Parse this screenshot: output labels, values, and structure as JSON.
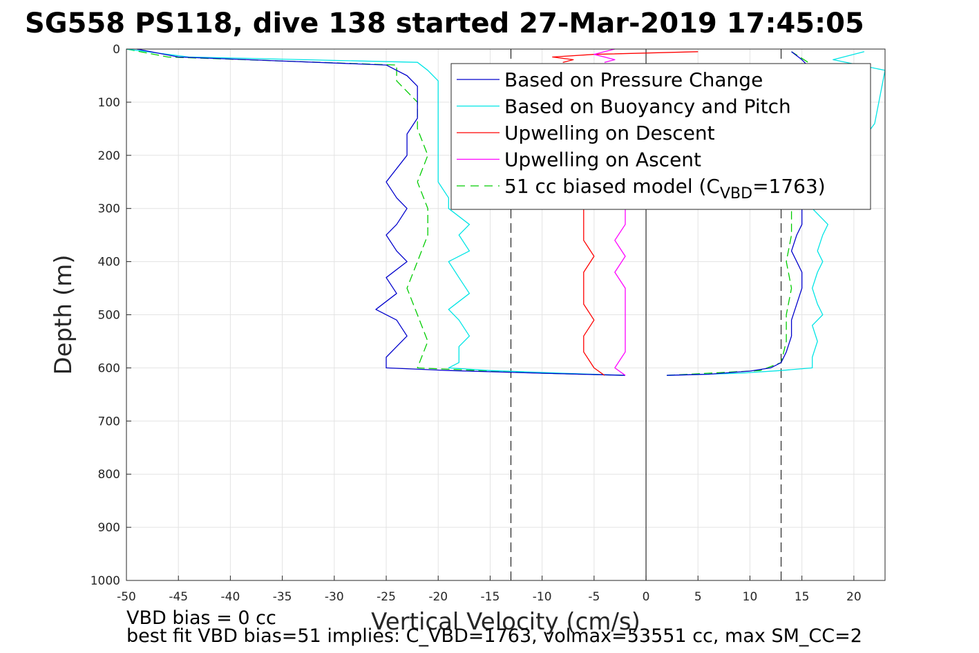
{
  "title": "SG558 PS118, dive 138 started 27-Mar-2019 17:45:05",
  "notes": {
    "line1": "VBD bias = 0 cc",
    "line2": "best fit VBD bias=51 implies: C_VBD=1763, volmax=53551 cc, max SM_CC=2"
  },
  "chart_data": {
    "type": "line",
    "xlabel": "Vertical Velocity (cm/s)",
    "ylabel": "Depth (m)",
    "xlim": [
      -50,
      23
    ],
    "ylim": [
      0,
      1000
    ],
    "y_reversed": true,
    "grid": true,
    "xticks": [
      "-50",
      "-45",
      "-40",
      "-35",
      "-30",
      "-25",
      "-20",
      "-15",
      "-10",
      "-5",
      "0",
      "5",
      "10",
      "15",
      "20"
    ],
    "yticks": [
      "0",
      "100",
      "200",
      "300",
      "400",
      "500",
      "600",
      "700",
      "800",
      "900",
      "1000"
    ],
    "legend_location": "top-right",
    "reference_lines": {
      "dashed_velocity_x": [
        -13,
        13
      ],
      "solid_velocity_x": [
        0
      ]
    },
    "series": [
      {
        "name": "Based on Pressure Change",
        "color": "#0000cc",
        "style": "solid",
        "descent": {
          "depth": [
            0,
            15,
            30,
            50,
            70,
            100,
            130,
            160,
            200,
            250,
            280,
            300,
            330,
            350,
            380,
            400,
            430,
            460,
            490,
            510,
            540,
            560,
            580,
            600,
            605,
            610,
            614
          ],
          "velocity": [
            -49,
            -45,
            -25,
            -23,
            -22,
            -22,
            -22,
            -23,
            -23,
            -25,
            -24,
            -23,
            -24,
            -25,
            -24,
            -23,
            -25,
            -24,
            -26,
            -24,
            -23,
            -24,
            -25,
            -25,
            -19,
            -10,
            -2
          ]
        },
        "ascent": {
          "depth": [
            614,
            612,
            606,
            600,
            590,
            570,
            540,
            510,
            480,
            450,
            420,
            400,
            380,
            350,
            330,
            300,
            100,
            40,
            20,
            5
          ],
          "velocity": [
            2,
            6,
            10,
            12,
            13,
            13.5,
            14,
            14,
            14.5,
            15,
            15,
            14.5,
            14,
            14.5,
            15,
            15,
            15,
            16,
            15,
            14
          ]
        }
      },
      {
        "name": "Based on Buoyancy and Pitch",
        "color": "#00e5e5",
        "style": "solid",
        "descent": {
          "depth": [
            0,
            15,
            25,
            40,
            60,
            100,
            150,
            200,
            250,
            280,
            300,
            330,
            350,
            380,
            400,
            430,
            460,
            490,
            510,
            540,
            560,
            590,
            600,
            605,
            610,
            614
          ],
          "velocity": [
            -50,
            -44,
            -22,
            -21,
            -20,
            -20,
            -20,
            -20,
            -20,
            -19,
            -19,
            -17,
            -18,
            -17,
            -19,
            -18,
            -17,
            -19,
            -18,
            -17,
            -18,
            -18,
            -19,
            -15,
            -8,
            -2
          ]
        },
        "ascent": {
          "depth": [
            614,
            610,
            605,
            600,
            580,
            550,
            520,
            500,
            480,
            450,
            420,
            400,
            380,
            350,
            330,
            300,
            140,
            40,
            20,
            5
          ],
          "velocity": [
            2,
            9,
            13,
            16,
            16,
            16.5,
            16,
            17,
            16.5,
            16,
            16.5,
            17,
            16.5,
            17,
            17.5,
            16,
            22,
            23,
            18,
            21
          ]
        }
      },
      {
        "name": "Upwelling on Descent",
        "color": "#ff0000",
        "style": "solid",
        "segments": [
          {
            "depth": [
              5,
              10,
              15,
              20,
              25
            ],
            "velocity": [
              5,
              -5,
              -9,
              -7,
              -8
            ]
          },
          {
            "depth": [
              300,
              330,
              360,
              390,
              420,
              450,
              480,
              510,
              540,
              570,
              600,
              614
            ],
            "velocity": [
              -6,
              -6,
              -6,
              -5,
              -6,
              -6,
              -6,
              -5,
              -6,
              -6,
              -5,
              -4
            ]
          }
        ]
      },
      {
        "name": "Upwelling on Ascent",
        "color": "#ff00ff",
        "style": "solid",
        "segments": [
          {
            "depth": [
              0,
              5,
              10,
              15,
              20,
              25
            ],
            "velocity": [
              -3,
              -4,
              -5,
              -4,
              -3,
              -4
            ]
          },
          {
            "depth": [
              300,
              330,
              360,
              390,
              420,
              450,
              480,
              510,
              540,
              570,
              600,
              614
            ],
            "velocity": [
              -2,
              -2,
              -3,
              -2,
              -3,
              -2,
              -2,
              -2,
              -2,
              -2,
              -3,
              -2
            ]
          }
        ]
      },
      {
        "name": "51 cc biased model (C",
        "name_sub": "VBD",
        "name_suffix": "=1763)",
        "color": "#00cc00",
        "style": "dashed",
        "descent": {
          "depth": [
            0,
            15,
            30,
            60,
            100,
            150,
            200,
            250,
            300,
            350,
            400,
            450,
            500,
            550,
            600,
            610,
            614
          ],
          "velocity": [
            -50,
            -46,
            -24,
            -24,
            -22,
            -22,
            -21,
            -22,
            -21,
            -21,
            -22,
            -23,
            -22,
            -21,
            -22,
            -10,
            -2
          ]
        },
        "ascent": {
          "depth": [
            614,
            605,
            590,
            550,
            500,
            450,
            400,
            350,
            300,
            100,
            30,
            5
          ],
          "velocity": [
            2,
            11,
            13,
            13.5,
            13.5,
            14,
            13.5,
            14,
            14,
            15,
            16,
            14
          ]
        }
      }
    ]
  }
}
